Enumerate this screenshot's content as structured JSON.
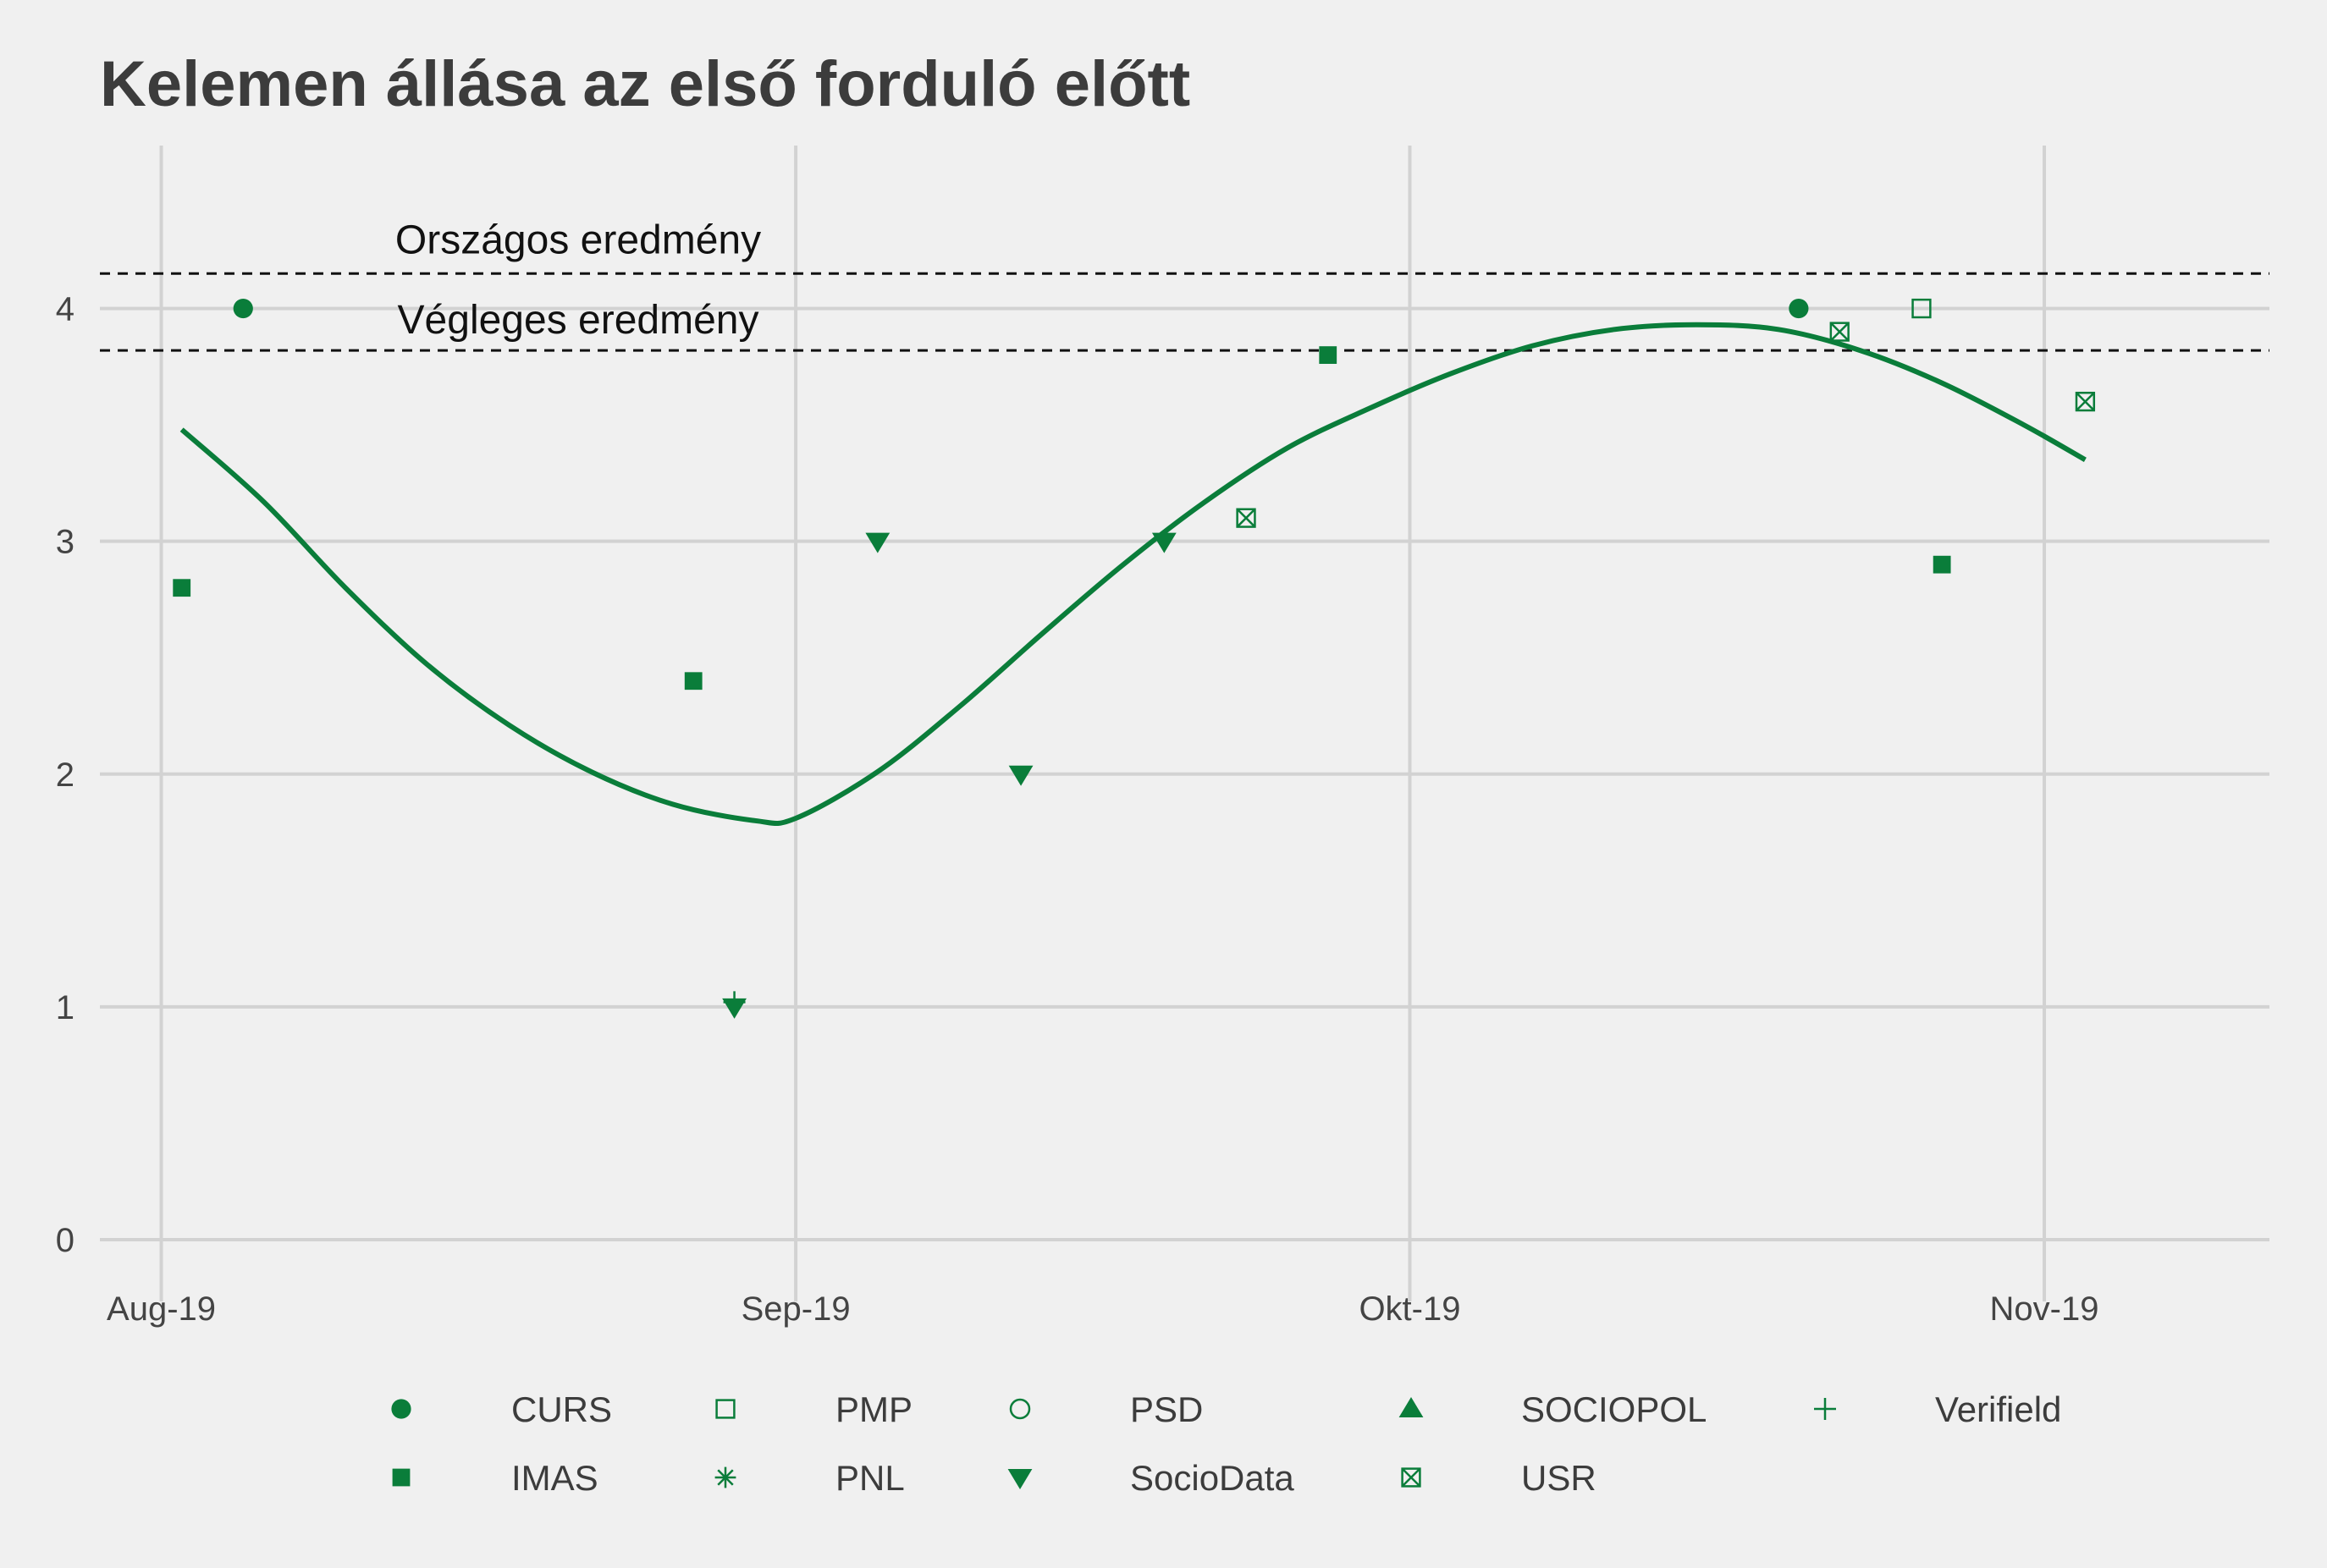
{
  "chart_data": {
    "type": "scatter",
    "title": "Kelemen állása az első forduló előtt",
    "xlabel": "",
    "ylabel": "",
    "x_type": "date",
    "xlim": [
      "2019-07-29",
      "2019-11-12"
    ],
    "ylim": [
      -0.2,
      4.7
    ],
    "x_ticks": [
      {
        "value": "2019-08-01",
        "label": "Aug-19"
      },
      {
        "value": "2019-09-01",
        "label": "Sep-19"
      },
      {
        "value": "2019-10-01",
        "label": "Okt-19"
      },
      {
        "value": "2019-11-01",
        "label": "Nov-19"
      }
    ],
    "y_ticks": [
      {
        "value": 0,
        "label": "0"
      },
      {
        "value": 1,
        "label": "1"
      },
      {
        "value": 2,
        "label": "2"
      },
      {
        "value": 3,
        "label": "3"
      },
      {
        "value": 4,
        "label": "4"
      }
    ],
    "grid": true,
    "color": "#0a7d3a",
    "reference_lines": [
      {
        "value": 4.15,
        "label": "Országos eredmény"
      },
      {
        "value": 3.82,
        "label": "Végleges eredmény"
      }
    ],
    "series": [
      {
        "name": "CURS",
        "symbol": "filled-circle",
        "points": [
          {
            "x": "2019-08-05",
            "y": 4.0
          },
          {
            "x": "2019-10-20",
            "y": 4.0
          }
        ]
      },
      {
        "name": "PMP",
        "symbol": "open-square",
        "points": [
          {
            "x": "2019-10-26",
            "y": 4.0
          }
        ]
      },
      {
        "name": "PSD",
        "symbol": "open-circle",
        "points": []
      },
      {
        "name": "SOCIOPOL",
        "symbol": "filled-triangle-up",
        "points": []
      },
      {
        "name": "Verifield",
        "symbol": "plus",
        "points": [
          {
            "x": "2019-08-29",
            "y": 1.02
          }
        ]
      },
      {
        "name": "IMAS",
        "symbol": "filled-square",
        "points": [
          {
            "x": "2019-08-02",
            "y": 2.8
          },
          {
            "x": "2019-08-27",
            "y": 2.4
          },
          {
            "x": "2019-09-27",
            "y": 3.8
          },
          {
            "x": "2019-10-27",
            "y": 2.9
          }
        ]
      },
      {
        "name": "PNL",
        "symbol": "asterisk",
        "points": []
      },
      {
        "name": "SocioData",
        "symbol": "filled-triangle-down",
        "points": [
          {
            "x": "2019-08-29",
            "y": 1.0
          },
          {
            "x": "2019-09-05",
            "y": 3.0
          },
          {
            "x": "2019-09-12",
            "y": 2.0
          },
          {
            "x": "2019-09-19",
            "y": 3.0
          }
        ]
      },
      {
        "name": "USR",
        "symbol": "boxed-x",
        "points": [
          {
            "x": "2019-09-23",
            "y": 3.1
          },
          {
            "x": "2019-10-22",
            "y": 3.9
          },
          {
            "x": "2019-11-03",
            "y": 3.6
          }
        ]
      }
    ],
    "trend": {
      "name": "smooth",
      "points": [
        {
          "x": "2019-08-02",
          "y": 3.48
        },
        {
          "x": "2019-08-06",
          "y": 3.17
        },
        {
          "x": "2019-08-10",
          "y": 2.8
        },
        {
          "x": "2019-08-14",
          "y": 2.47
        },
        {
          "x": "2019-08-18",
          "y": 2.21
        },
        {
          "x": "2019-08-22",
          "y": 2.01
        },
        {
          "x": "2019-08-26",
          "y": 1.87
        },
        {
          "x": "2019-08-30",
          "y": 1.8
        },
        {
          "x": "2019-09-01",
          "y": 1.81
        },
        {
          "x": "2019-09-05",
          "y": 2.01
        },
        {
          "x": "2019-09-09",
          "y": 2.29
        },
        {
          "x": "2019-09-13",
          "y": 2.6
        },
        {
          "x": "2019-09-17",
          "y": 2.9
        },
        {
          "x": "2019-09-21",
          "y": 3.17
        },
        {
          "x": "2019-09-25",
          "y": 3.4
        },
        {
          "x": "2019-09-29",
          "y": 3.57
        },
        {
          "x": "2019-10-03",
          "y": 3.72
        },
        {
          "x": "2019-10-07",
          "y": 3.84
        },
        {
          "x": "2019-10-11",
          "y": 3.91
        },
        {
          "x": "2019-10-15",
          "y": 3.93
        },
        {
          "x": "2019-10-19",
          "y": 3.91
        },
        {
          "x": "2019-10-23",
          "y": 3.82
        },
        {
          "x": "2019-10-27",
          "y": 3.68
        },
        {
          "x": "2019-10-31",
          "y": 3.5
        },
        {
          "x": "2019-11-03",
          "y": 3.35
        }
      ]
    },
    "legend": {
      "position": "bottom",
      "entries": [
        {
          "name": "CURS",
          "symbol": "filled-circle"
        },
        {
          "name": "PMP",
          "symbol": "open-square"
        },
        {
          "name": "PSD",
          "symbol": "open-circle"
        },
        {
          "name": "SOCIOPOL",
          "symbol": "filled-triangle-up"
        },
        {
          "name": "Verifield",
          "symbol": "plus"
        },
        {
          "name": "IMAS",
          "symbol": "filled-square"
        },
        {
          "name": "PNL",
          "symbol": "asterisk"
        },
        {
          "name": "SocioData",
          "symbol": "filled-triangle-down"
        },
        {
          "name": "USR",
          "symbol": "boxed-x"
        }
      ]
    }
  }
}
